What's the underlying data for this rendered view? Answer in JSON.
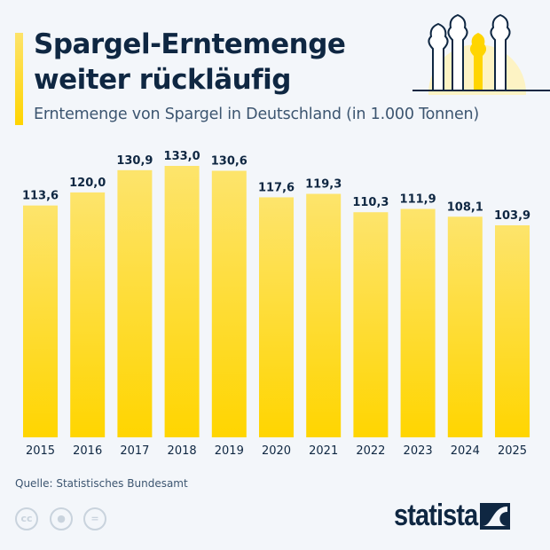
{
  "header": {
    "title_line1": "Spargel-Erntemenge",
    "title_line2": "weiter rückläufig",
    "subtitle": "Erntemenge von Spargel in Deutschland (in 1.000 Tonnen)"
  },
  "footer": {
    "source": "Quelle: Statistisches Bundesamt",
    "brand": "statista",
    "license_icons": [
      "cc-icon",
      "attribution-icon",
      "no-derivatives-icon"
    ]
  },
  "colors": {
    "bar_top": "#fde46c",
    "bar_bottom": "#ffd500",
    "text": "#0f2742",
    "background": "#f3f6fa"
  },
  "chart_data": {
    "type": "bar",
    "categories": [
      "2015",
      "2016",
      "2017",
      "2018",
      "2019",
      "2020",
      "2021",
      "2022",
      "2023",
      "2024",
      "2025"
    ],
    "values": [
      113.6,
      120.0,
      130.9,
      133.0,
      130.6,
      117.6,
      119.3,
      110.3,
      111.9,
      108.1,
      103.9
    ],
    "labels": [
      "113,6",
      "120,0",
      "130,9",
      "133,0",
      "130,6",
      "117,6",
      "119,3",
      "110,3",
      "111,9",
      "108,1",
      "103,9"
    ],
    "title": "Erntemenge von Spargel in Deutschland (in 1.000 Tonnen)",
    "xlabel": "",
    "ylabel": "",
    "ylim": [
      0,
      133
    ],
    "grid": false,
    "legend": "none"
  }
}
